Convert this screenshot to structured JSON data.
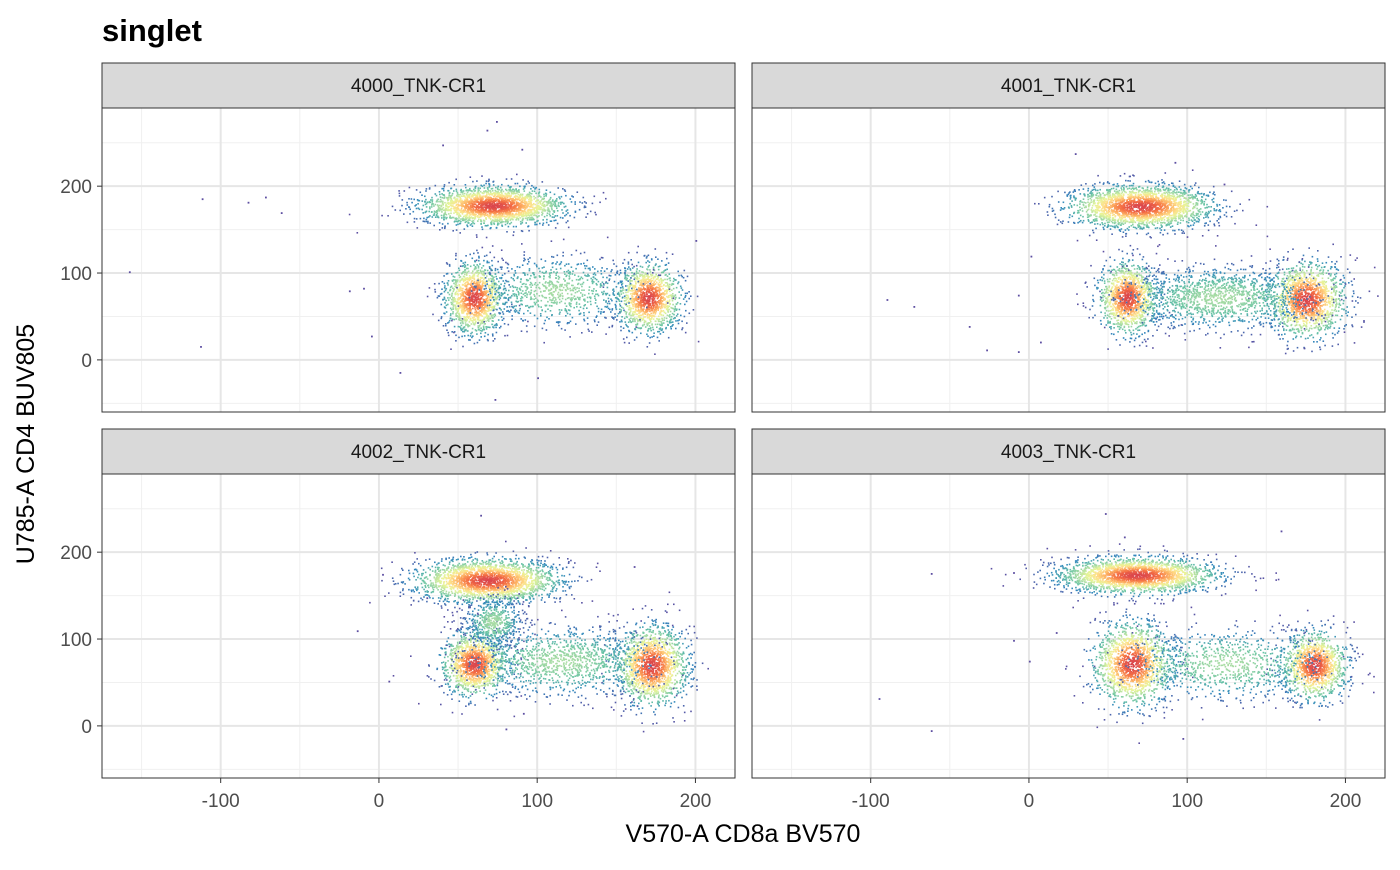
{
  "chart_data": {
    "type": "scatter",
    "title": "singlet",
    "xlabel": "V570-A CD8a BV570",
    "ylabel": "U785-A CD4 BUV805",
    "xlim": [
      -175,
      225
    ],
    "ylim": [
      -60,
      290
    ],
    "x_ticks": [
      -100,
      0,
      100,
      200
    ],
    "y_ticks": [
      0,
      100,
      200
    ],
    "x_tick_labels": [
      "-100",
      "0",
      "100",
      "200"
    ],
    "y_tick_labels": [
      "0",
      "100",
      "200"
    ],
    "grid": true,
    "color_scale": {
      "name": "Spectral (density)",
      "colors": [
        "#5e4fa2",
        "#3288bd",
        "#66c2a5",
        "#abdda4",
        "#e6f598",
        "#fee08b",
        "#fdae61",
        "#f46d43",
        "#d53e4f"
      ]
    },
    "panels": [
      {
        "strip": "4000_TNK-CR1",
        "clusters": [
          {
            "population": "CD4+",
            "x": 72,
            "y": 178,
            "sx": 22,
            "sy": 11,
            "n": 2200
          },
          {
            "population": "CD4-CD8-",
            "x": 60,
            "y": 72,
            "sx": 9,
            "sy": 20,
            "n": 1300
          },
          {
            "population": "CD8+",
            "x": 170,
            "y": 72,
            "sx": 10,
            "sy": 19,
            "n": 1200
          },
          {
            "population": "bridge",
            "x": 112,
            "y": 80,
            "sx": 25,
            "sy": 20,
            "n": 800
          }
        ],
        "outliers": [
          [
            -158,
            102
          ],
          [
            -113,
            16
          ],
          [
            -112,
            186
          ],
          [
            -83,
            182
          ],
          [
            -72,
            188
          ],
          [
            -62,
            170
          ],
          [
            -19,
            80
          ],
          [
            -10,
            83
          ],
          [
            -5,
            28
          ],
          [
            13,
            -14
          ],
          [
            100,
            -20
          ],
          [
            73,
            -45
          ],
          [
            74,
            275
          ],
          [
            68,
            265
          ],
          [
            40,
            248
          ],
          [
            90,
            243
          ],
          [
            200,
            138
          ]
        ]
      },
      {
        "strip": "4001_TNK-CR1",
        "clusters": [
          {
            "population": "CD4+",
            "x": 70,
            "y": 177,
            "sx": 22,
            "sy": 12,
            "n": 2200
          },
          {
            "population": "CD4-CD8-",
            "x": 62,
            "y": 72,
            "sx": 9,
            "sy": 20,
            "n": 1200
          },
          {
            "population": "CD8+",
            "x": 175,
            "y": 70,
            "sx": 12,
            "sy": 21,
            "n": 1400
          },
          {
            "population": "bridge",
            "x": 120,
            "y": 72,
            "sx": 30,
            "sy": 18,
            "n": 1300
          }
        ],
        "outliers": [
          [
            -90,
            70
          ],
          [
            -73,
            62
          ],
          [
            -38,
            39
          ],
          [
            -27,
            12
          ],
          [
            -7,
            10
          ],
          [
            -7,
            75
          ],
          [
            7,
            21
          ],
          [
            1,
            120
          ],
          [
            29,
            238
          ],
          [
            92,
            228
          ],
          [
            123,
            203
          ]
        ]
      },
      {
        "strip": "4002_TNK-CR1",
        "clusters": [
          {
            "population": "CD4+",
            "x": 68,
            "y": 168,
            "sx": 22,
            "sy": 12,
            "n": 2200
          },
          {
            "population": "CD4-CD8-",
            "x": 60,
            "y": 72,
            "sx": 10,
            "sy": 18,
            "n": 1300
          },
          {
            "population": "CD8+",
            "x": 172,
            "y": 70,
            "sx": 11,
            "sy": 22,
            "n": 1500
          },
          {
            "population": "bridge",
            "x": 115,
            "y": 75,
            "sx": 30,
            "sy": 20,
            "n": 1100
          },
          {
            "population": "stem",
            "x": 72,
            "y": 120,
            "sx": 9,
            "sy": 14,
            "n": 500
          }
        ],
        "outliers": [
          [
            -14,
            110
          ],
          [
            2,
            175
          ],
          [
            6,
            52
          ],
          [
            30,
            148
          ],
          [
            64,
            243
          ],
          [
            80,
            -3
          ],
          [
            91,
            15
          ],
          [
            161,
            184
          ]
        ]
      },
      {
        "strip": "4003_TNK-CR1",
        "clusters": [
          {
            "population": "CD4+",
            "x": 68,
            "y": 174,
            "sx": 24,
            "sy": 10,
            "n": 2200
          },
          {
            "population": "CD4-CD8-",
            "x": 65,
            "y": 72,
            "sx": 12,
            "sy": 23,
            "n": 1500
          },
          {
            "population": "CD8+",
            "x": 180,
            "y": 70,
            "sx": 10,
            "sy": 19,
            "n": 1200
          },
          {
            "population": "bridge",
            "x": 125,
            "y": 72,
            "sx": 30,
            "sy": 20,
            "n": 800
          }
        ],
        "outliers": [
          [
            -95,
            32
          ],
          [
            -62,
            176
          ],
          [
            -62,
            -5
          ],
          [
            -10,
            99
          ],
          [
            -10,
            177
          ],
          [
            0,
            75
          ],
          [
            17,
            108
          ],
          [
            48,
            245
          ],
          [
            60,
            218
          ],
          [
            97,
            -14
          ],
          [
            159,
            225
          ]
        ]
      }
    ]
  }
}
